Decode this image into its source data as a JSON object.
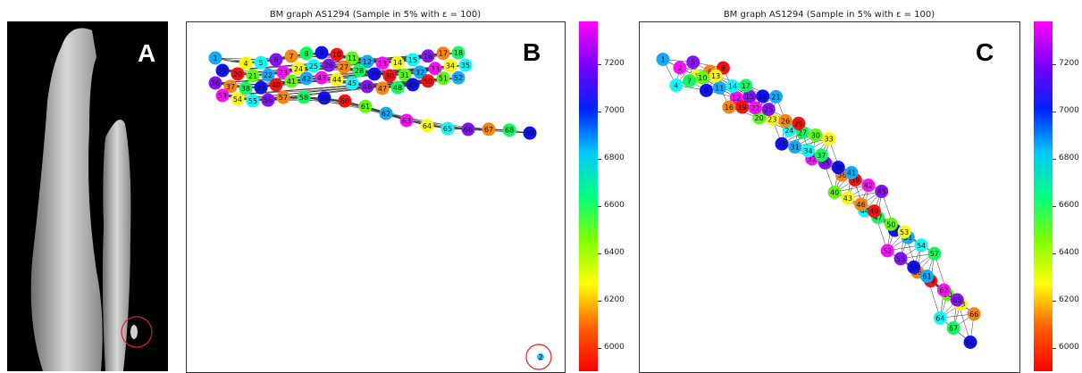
{
  "panels": {
    "a": {
      "letter": "A"
    },
    "b": {
      "letter": "B",
      "title": "BM graph AS1294 (Sample in 5% with ε = 100)",
      "outlier_label": "2"
    },
    "c": {
      "letter": "C",
      "title": "BM graph AS1294 (Sample in 5% with ε = 100)"
    }
  },
  "colorbar": {
    "ticks": [
      "7200",
      "7000",
      "6800",
      "6600",
      "6400",
      "6200",
      "6000"
    ],
    "min": 5900,
    "max": 7380
  },
  "chart_data": [
    {
      "type": "scatter",
      "title": "BM graph AS1294 (Sample in 5% with ε = 100)",
      "xlabel": "",
      "ylabel": "",
      "nodes": [
        "1",
        "2",
        "4",
        "5",
        "6",
        "7",
        "8",
        "9",
        "10",
        "11",
        "12",
        "13",
        "14",
        "15",
        "16",
        "17",
        "18",
        "19",
        "20",
        "21",
        "22",
        "23",
        "24",
        "25",
        "26",
        "27",
        "28",
        "29",
        "30",
        "31",
        "32",
        "33",
        "34",
        "35",
        "36",
        "37",
        "38",
        "39",
        "40",
        "41",
        "42",
        "43",
        "44",
        "45",
        "46",
        "47",
        "48",
        "49",
        "50",
        "51",
        "52",
        "53",
        "54",
        "55",
        "56",
        "57",
        "58",
        "59",
        "60",
        "61",
        "62",
        "63",
        "64",
        "65",
        "66",
        "67",
        "68",
        "69"
      ],
      "outlier_node": "2",
      "colorbar_range": [
        5900,
        7380
      ]
    },
    {
      "type": "scatter",
      "title": "BM graph AS1294 (Sample in 5% with ε = 100)",
      "xlabel": "",
      "ylabel": "",
      "nodes": [
        "1",
        "2",
        "3",
        "4",
        "5",
        "6",
        "7",
        "8",
        "9",
        "10",
        "11",
        "12",
        "13",
        "14",
        "15",
        "16",
        "17",
        "18",
        "19",
        "20",
        "21",
        "22",
        "23",
        "24",
        "25",
        "26",
        "27",
        "28",
        "29",
        "30",
        "31",
        "32",
        "33",
        "34",
        "35",
        "36",
        "37",
        "38",
        "39",
        "40",
        "41",
        "42",
        "43",
        "44",
        "45",
        "46",
        "47",
        "48",
        "49",
        "50",
        "51",
        "52",
        "53",
        "54",
        "55",
        "56",
        "57",
        "58",
        "59",
        "60",
        "61",
        "62",
        "63",
        "64",
        "65",
        "66",
        "67",
        "68"
      ],
      "colorbar_range": [
        5900,
        7380
      ]
    }
  ]
}
